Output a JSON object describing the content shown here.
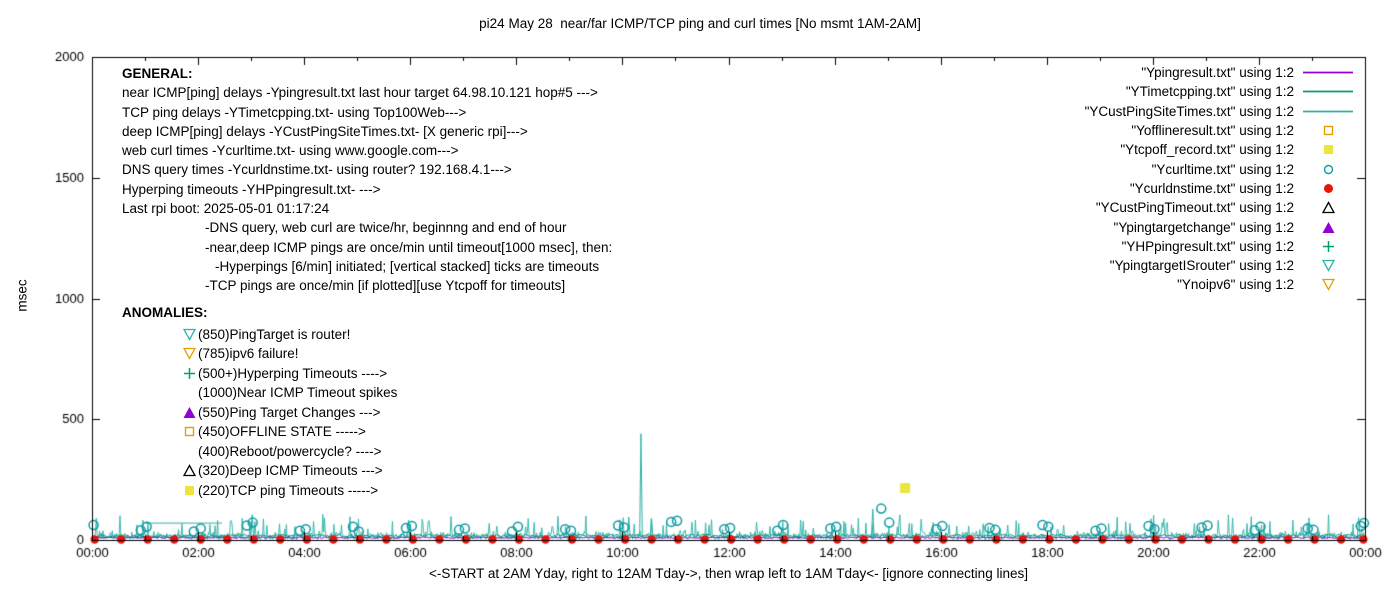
{
  "title": "pi24 May 28  near/far ICMP/TCP ping and curl times [No msmt 1AM-2AM]",
  "axes": {
    "ylabel": "msec",
    "xlabel": "<-START at 2AM Yday, right to 12AM Tday->, then wrap left to 1AM Tday<- [ignore connecting lines]"
  },
  "colors": {
    "purple": "#9400d3",
    "green": "#009e73",
    "teal": "#2fb3a7",
    "circle_teal": "#0f9aa0",
    "orange": "#e69f00",
    "yellow": "#ece53b",
    "red": "#e8140c",
    "black": "#000000"
  },
  "legend": {
    "entries": [
      {
        "label": "\"Ypingresult.txt\" using 1:2",
        "marker": "line",
        "color": "#9400d3"
      },
      {
        "label": "\"YTimetcpping.txt\" using 1:2",
        "marker": "line",
        "color": "#009e73"
      },
      {
        "label": "\"YCustPingSiteTimes.txt\" using 1:2",
        "marker": "line",
        "color": "#2fb3a7"
      },
      {
        "label": "\"Yofflineresult.txt\" using 1:2",
        "marker": "square-open",
        "color": "#e69f00"
      },
      {
        "label": "\"Ytcpoff_record.txt\" using 1:2",
        "marker": "square-filled",
        "color": "#ece53b"
      },
      {
        "label": "\"Ycurltime.txt\" using 1:2",
        "marker": "circle-open",
        "color": "#0f9aa0"
      },
      {
        "label": "\"Ycurldnstime.txt\" using 1:2",
        "marker": "circle-filled",
        "color": "#e8140c"
      },
      {
        "label": "\"YCustPingTimeout.txt\" using 1:2",
        "marker": "triangle-up-open",
        "color": "#000000"
      },
      {
        "label": "\"Ypingtargetchange\" using 1:2",
        "marker": "triangle-up-filled",
        "color": "#9400d3"
      },
      {
        "label": "\"YHPpingresult.txt\" using 1:2",
        "marker": "plus",
        "color": "#009e73"
      },
      {
        "label": "\"YpingtargetISrouter\" using 1:2",
        "marker": "triangle-down-open",
        "color": "#2fb3a7"
      },
      {
        "label": "\"Ynoipv6\" using 1:2",
        "marker": "triangle-down-open",
        "color": "#e69f00"
      }
    ]
  },
  "general": {
    "heading": "GENERAL:",
    "lines": [
      {
        "text": "near ICMP[ping] delays -Ypingresult.txt last hour target 64.98.10.121 hop#5 --->",
        "indent": 0
      },
      {
        "text": "TCP ping delays -YTimetcpping.txt- using Top100Web--->",
        "indent": 0
      },
      {
        "text": "deep ICMP[ping] delays -YCustPingSiteTimes.txt- [X generic rpi]--->",
        "indent": 0
      },
      {
        "text": "web curl times -Ycurltime.txt- using www.google.com--->",
        "indent": 0
      },
      {
        "text": "DNS query times -Ycurldnstime.txt- using router? 192.168.4.1--->",
        "indent": 0
      },
      {
        "text": "Hyperping timeouts -YHPpingresult.txt- --->",
        "indent": 0
      },
      {
        "text": "Last rpi boot: 2025-05-01 01:17:24",
        "indent": 0
      },
      {
        "text": "-DNS query, web curl are twice/hr, beginnng and end of hour",
        "indent": 1
      },
      {
        "text": "-near,deep ICMP pings are once/min until timeout[1000 msec], then:",
        "indent": 1
      },
      {
        "text": "-Hyperpings [6/min] initiated; [vertical stacked] ticks are timeouts",
        "indent": 2
      },
      {
        "text": "-TCP pings are once/min [if plotted][use Ytcpoff for timeouts]",
        "indent": 1
      }
    ]
  },
  "anomalies": {
    "heading": "ANOMALIES:",
    "items": [
      {
        "marker": "triangle-down-open",
        "color": "#2fb3a7",
        "text": "(850)PingTarget is router!"
      },
      {
        "marker": "triangle-down-open",
        "color": "#e69f00",
        "text": "(785)ipv6 failure!"
      },
      {
        "marker": "plus",
        "color": "#009e73",
        "text": "(500+)Hyperping Timeouts ---->"
      },
      {
        "marker": null,
        "color": null,
        "text": "(1000)Near ICMP Timeout spikes"
      },
      {
        "marker": "triangle-up-filled",
        "color": "#9400d3",
        "text": "(550)Ping Target Changes --->"
      },
      {
        "marker": "square-open",
        "color": "#e69f00",
        "text": "(450)OFFLINE STATE ----->"
      },
      {
        "marker": null,
        "color": null,
        "text": "(400)Reboot/powercycle? ---->"
      },
      {
        "marker": "triangle-up-open",
        "color": "#000000",
        "text": "(320)Deep ICMP Timeouts --->"
      },
      {
        "marker": "square-filled",
        "color": "#ece53b",
        "text": "(220)TCP ping Timeouts ----->"
      }
    ]
  },
  "chart_data": {
    "type": "line",
    "title": "pi24 May 28  near/far ICMP/TCP ping and curl times [No msmt 1AM-2AM]",
    "xlabel": "<-START at 2AM Yday, right to 12AM Tday->, then wrap left to 1AM Tday<- [ignore connecting lines]",
    "ylabel": "msec",
    "x_unit": "hours_since_midnight",
    "xlim": [
      0,
      24
    ],
    "ylim": [
      0,
      2000
    ],
    "xticks": [
      "00:00",
      "02:00",
      "04:00",
      "06:00",
      "08:00",
      "10:00",
      "12:00",
      "14:00",
      "16:00",
      "18:00",
      "20:00",
      "22:00",
      "00:00"
    ],
    "xtick_hours": [
      0,
      2,
      4,
      6,
      8,
      10,
      12,
      14,
      16,
      18,
      20,
      22,
      24
    ],
    "yticks": [
      0,
      500,
      1000,
      1500,
      2000
    ],
    "grid": false,
    "legend_position": "top-right",
    "baseline_lines": [
      {
        "name": "Ypingresult.txt near ICMP delays",
        "color": "#9400d3",
        "base": 10,
        "jitter": 6,
        "seed": 11
      },
      {
        "name": "YTimetcpping.txt TCP ping delays",
        "color": "#009e73",
        "base": 18,
        "jitter": 12,
        "seed": 22
      }
    ],
    "noise_line": {
      "name": "YCustPingSiteTimes.txt deep ICMP delays",
      "color": "#2fb3a7",
      "seed": 1234,
      "step_hours": 0.016,
      "base": 2,
      "amp": 40,
      "burst_prob": 0.1,
      "burst_amp": 55
    },
    "flat_artifact": {
      "note": "connecting line across 1AM-2AM no-measurement gap",
      "x_start": 1.0,
      "x_end": 2.45,
      "y": 70,
      "color": "#2fb3a7"
    },
    "spikes": [
      {
        "x": 10.35,
        "y": 440,
        "note": "near ICMP timeout spike"
      },
      {
        "x": 3.02,
        "y": 105
      },
      {
        "x": 10.12,
        "y": 95
      },
      {
        "x": 10.55,
        "y": 88
      },
      {
        "x": 14.72,
        "y": 128
      },
      {
        "x": 23.88,
        "y": 92
      }
    ],
    "curl_times": {
      "name": "Ycurltime.txt web curl times",
      "marker": "circle-open",
      "color": "#0f9aa0",
      "points": [
        [
          0.03,
          62
        ],
        [
          0.92,
          40
        ],
        [
          1.03,
          55
        ],
        [
          1.92,
          35
        ],
        [
          2.05,
          48
        ],
        [
          2.92,
          60
        ],
        [
          3.03,
          72
        ],
        [
          3.92,
          38
        ],
        [
          4.03,
          45
        ],
        [
          4.92,
          55
        ],
        [
          5.03,
          35
        ],
        [
          5.92,
          50
        ],
        [
          6.03,
          58
        ],
        [
          6.92,
          42
        ],
        [
          7.03,
          48
        ],
        [
          7.92,
          35
        ],
        [
          8.03,
          55
        ],
        [
          8.92,
          45
        ],
        [
          9.03,
          38
        ],
        [
          9.92,
          60
        ],
        [
          10.03,
          52
        ],
        [
          10.92,
          75
        ],
        [
          11.03,
          80
        ],
        [
          11.92,
          45
        ],
        [
          12.03,
          50
        ],
        [
          12.92,
          38
        ],
        [
          13.03,
          62
        ],
        [
          13.92,
          48
        ],
        [
          14.03,
          55
        ],
        [
          14.88,
          130
        ],
        [
          15.03,
          72
        ],
        [
          15.92,
          45
        ],
        [
          16.03,
          58
        ],
        [
          16.92,
          50
        ],
        [
          17.03,
          42
        ],
        [
          17.92,
          62
        ],
        [
          18.03,
          55
        ],
        [
          18.92,
          38
        ],
        [
          19.03,
          48
        ],
        [
          19.92,
          58
        ],
        [
          20.03,
          45
        ],
        [
          20.92,
          52
        ],
        [
          21.03,
          60
        ],
        [
          21.92,
          40
        ],
        [
          22.03,
          55
        ],
        [
          22.92,
          48
        ],
        [
          23.03,
          42
        ],
        [
          23.92,
          58
        ],
        [
          23.98,
          70
        ]
      ]
    },
    "dns_times": {
      "name": "Ycurldnstime.txt DNS query times",
      "marker": "circle-filled",
      "color": "#e8140c",
      "y": 2,
      "xs": [
        0.05,
        0.55,
        1.05,
        1.55,
        2.05,
        2.55,
        3.05,
        3.55,
        4.05,
        4.55,
        5.05,
        5.55,
        6.05,
        6.55,
        7.05,
        7.55,
        8.05,
        8.55,
        9.05,
        9.55,
        10.05,
        10.55,
        11.05,
        11.55,
        12.05,
        12.55,
        13.05,
        13.55,
        14.05,
        14.55,
        15.05,
        15.55,
        16.05,
        16.55,
        17.05,
        17.55,
        18.05,
        18.55,
        19.05,
        19.55,
        20.05,
        20.55,
        21.05,
        21.55,
        22.05,
        22.55,
        23.05,
        23.55,
        23.97
      ]
    },
    "tcp_timeouts": {
      "name": "Ytcpoff_record.txt TCP ping timeouts",
      "marker": "square-filled",
      "color": "#ece53b",
      "points": [
        [
          15.33,
          215
        ]
      ]
    }
  }
}
